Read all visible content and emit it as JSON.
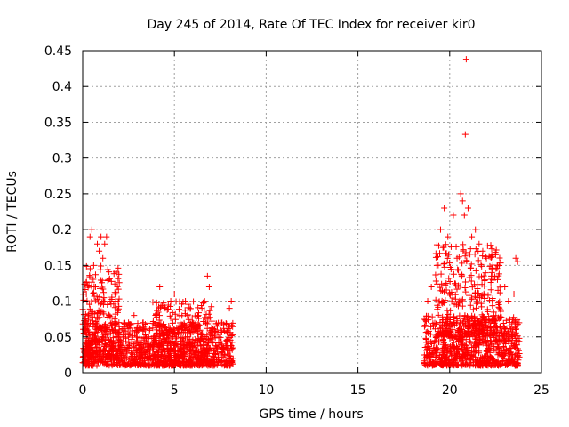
{
  "chart_data": {
    "type": "scatter",
    "title": "Day 245 of 2014, Rate Of TEC Index for receiver kir0",
    "xlabel": "GPS time / hours",
    "ylabel": "ROTI / TECUs",
    "xlim": [
      0,
      25
    ],
    "ylim": [
      0,
      0.45
    ],
    "xticks": [
      0,
      5,
      10,
      15,
      20,
      25
    ],
    "xtick_labels": [
      "0",
      "5",
      "10",
      "15",
      "20",
      "25"
    ],
    "yticks": [
      0,
      0.05,
      0.1,
      0.15,
      0.2,
      0.25,
      0.3,
      0.35,
      0.4,
      0.45
    ],
    "ytick_labels": [
      "0",
      "0.05",
      "0.1",
      "0.15",
      "0.2",
      "0.25",
      "0.3",
      "0.35",
      "0.4",
      "0.45"
    ],
    "grid": true,
    "marker": "+",
    "color": "#ff0000",
    "series": [
      {
        "name": "ROTI",
        "points": [
          [
            0.1,
            0.03
          ],
          [
            0.2,
            0.11
          ],
          [
            0.3,
            0.08
          ],
          [
            0.4,
            0.19
          ],
          [
            0.5,
            0.2
          ],
          [
            0.6,
            0.15
          ],
          [
            0.7,
            0.12
          ],
          [
            0.8,
            0.18
          ],
          [
            0.9,
            0.17
          ],
          [
            1.0,
            0.19
          ],
          [
            1.1,
            0.16
          ],
          [
            1.2,
            0.18
          ],
          [
            1.3,
            0.19
          ],
          [
            1.4,
            0.13
          ],
          [
            1.5,
            0.1
          ],
          [
            1.6,
            0.07
          ],
          [
            1.8,
            0.1
          ],
          [
            2.0,
            0.06
          ],
          [
            2.2,
            0.05
          ],
          [
            2.5,
            0.07
          ],
          [
            2.8,
            0.08
          ],
          [
            3.0,
            0.06
          ],
          [
            3.3,
            0.07
          ],
          [
            3.6,
            0.05
          ],
          [
            4.0,
            0.07
          ],
          [
            4.2,
            0.12
          ],
          [
            4.5,
            0.09
          ],
          [
            4.8,
            0.1
          ],
          [
            5.0,
            0.11
          ],
          [
            5.3,
            0.08
          ],
          [
            5.6,
            0.1
          ],
          [
            6.0,
            0.07
          ],
          [
            6.3,
            0.08
          ],
          [
            6.5,
            0.09
          ],
          [
            6.8,
            0.135
          ],
          [
            6.9,
            0.12
          ],
          [
            7.2,
            0.06
          ],
          [
            7.6,
            0.04
          ],
          [
            8.0,
            0.09
          ],
          [
            8.1,
            0.1
          ],
          [
            18.8,
            0.1
          ],
          [
            19.0,
            0.12
          ],
          [
            19.3,
            0.15
          ],
          [
            19.5,
            0.2
          ],
          [
            19.7,
            0.23
          ],
          [
            19.9,
            0.19
          ],
          [
            20.2,
            0.22
          ],
          [
            20.4,
            0.16
          ],
          [
            20.6,
            0.25
          ],
          [
            20.7,
            0.24
          ],
          [
            20.8,
            0.22
          ],
          [
            20.85,
            0.333
          ],
          [
            20.9,
            0.438
          ],
          [
            21.0,
            0.23
          ],
          [
            21.2,
            0.19
          ],
          [
            21.4,
            0.2
          ],
          [
            21.6,
            0.18
          ],
          [
            21.8,
            0.17
          ],
          [
            22.0,
            0.16
          ],
          [
            22.3,
            0.14
          ],
          [
            22.6,
            0.13
          ],
          [
            23.0,
            0.12
          ],
          [
            23.2,
            0.1
          ],
          [
            23.5,
            0.11
          ],
          [
            23.6,
            0.16
          ],
          [
            23.7,
            0.155
          ]
        ]
      }
    ],
    "bands": [
      {
        "x_start": 0.0,
        "x_end": 8.2,
        "y_low": 0.01,
        "y_high": 0.07,
        "count": 1000,
        "seed": 11
      },
      {
        "x_start": 0.0,
        "x_end": 2.0,
        "y_low": 0.02,
        "y_high": 0.15,
        "count": 260,
        "seed": 5
      },
      {
        "x_start": 3.8,
        "x_end": 7.2,
        "y_low": 0.01,
        "y_high": 0.1,
        "count": 280,
        "seed": 7
      },
      {
        "x_start": 18.6,
        "x_end": 23.8,
        "y_low": 0.01,
        "y_high": 0.08,
        "count": 750,
        "seed": 13
      },
      {
        "x_start": 19.2,
        "x_end": 22.8,
        "y_low": 0.05,
        "y_high": 0.18,
        "count": 340,
        "seed": 17
      }
    ]
  }
}
